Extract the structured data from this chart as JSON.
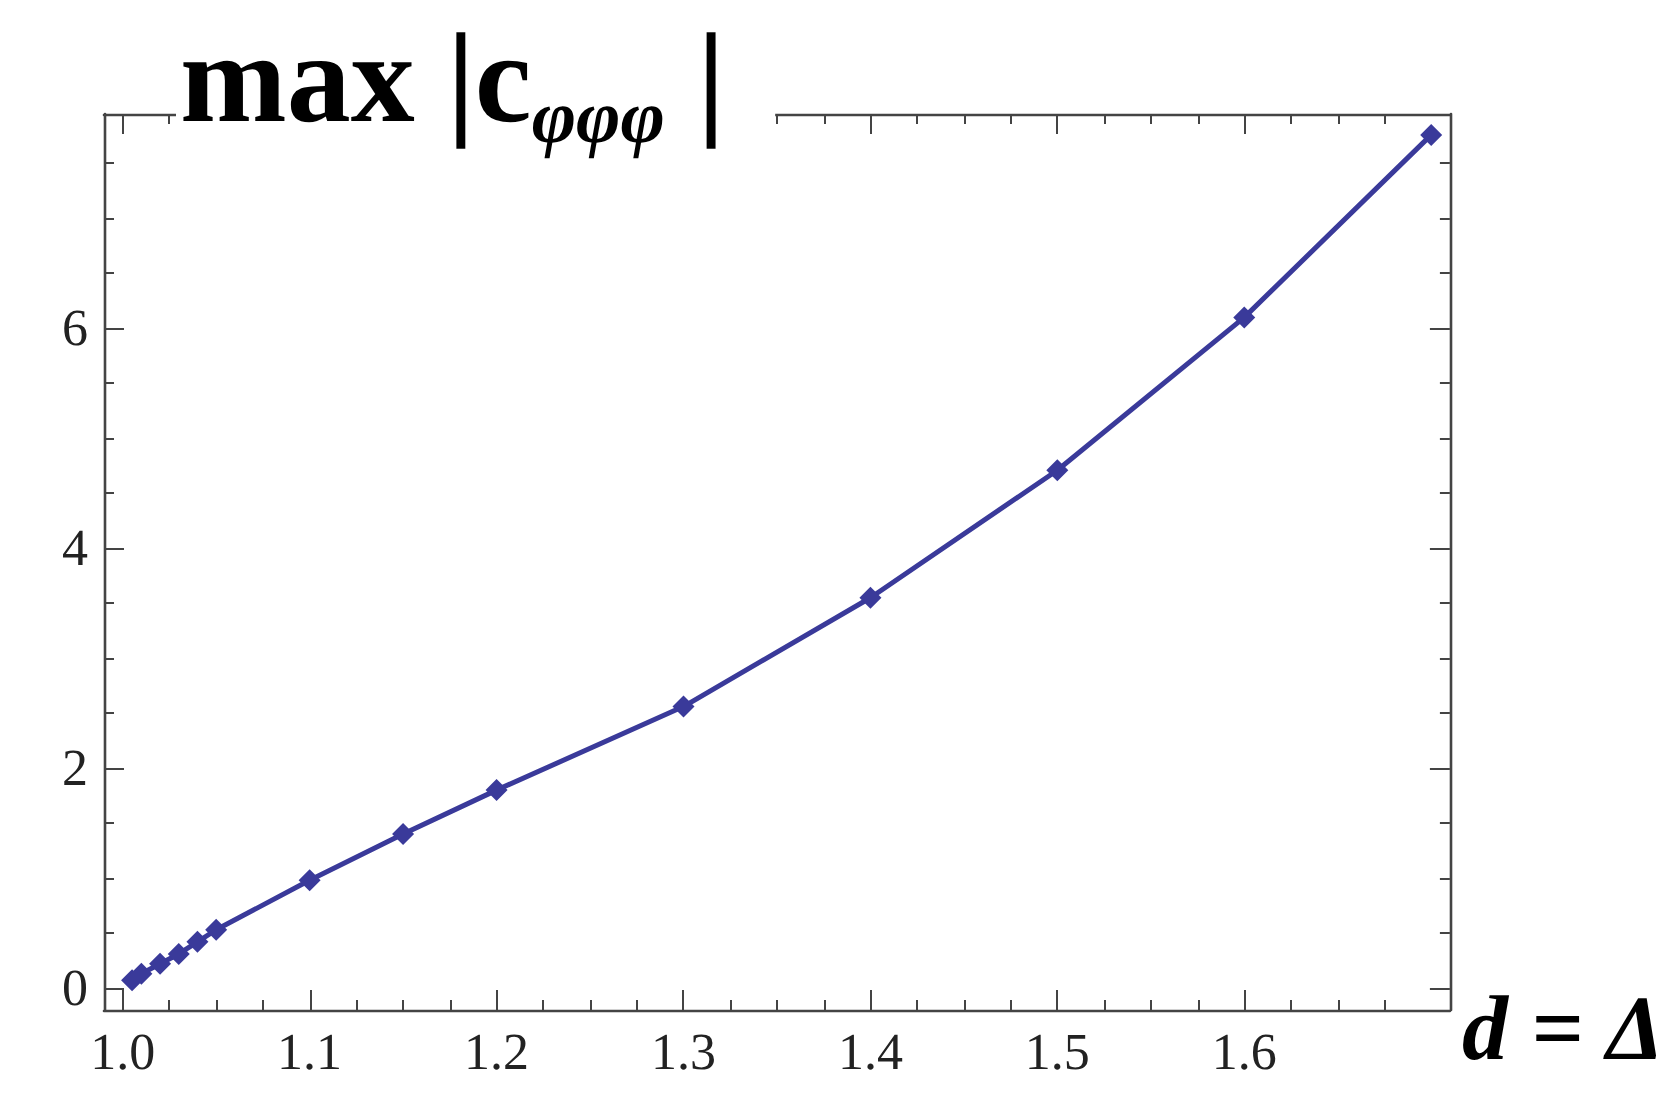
{
  "chart_data": {
    "type": "line",
    "title": "max |c$_{φφφ}$ |",
    "xlabel": "d = Δ",
    "x": [
      1.005,
      1.01,
      1.02,
      1.03,
      1.04,
      1.05,
      1.1,
      1.15,
      1.2,
      1.3,
      1.4,
      1.5,
      1.6,
      1.7
    ],
    "series": [
      {
        "color": "#3a3a9a",
        "values": [
          0.07,
          0.13,
          0.22,
          0.31,
          0.42,
          0.53,
          0.98,
          1.4,
          1.8,
          2.56,
          3.55,
          4.71,
          6.1,
          7.76
        ]
      }
    ],
    "xlim": [
      0.99,
      1.71
    ],
    "ylim": [
      -0.2,
      7.95
    ],
    "xticks": [
      {
        "value": 1.0,
        "label": "1.0"
      },
      1.1,
      1.2,
      1.3,
      1.4,
      1.5,
      1.6
    ],
    "yticks": [
      0,
      2,
      4,
      6
    ],
    "marker": "diamond",
    "line_style": "solid"
  }
}
